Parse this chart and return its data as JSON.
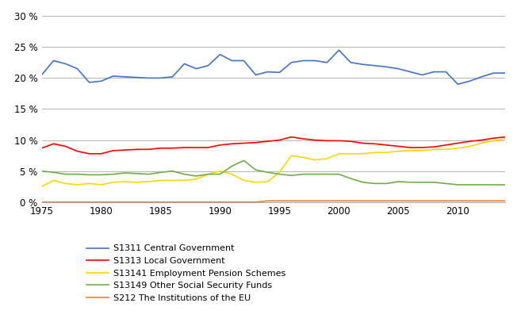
{
  "years": [
    1975,
    1976,
    1977,
    1978,
    1979,
    1980,
    1981,
    1982,
    1983,
    1984,
    1985,
    1986,
    1987,
    1988,
    1989,
    1990,
    1991,
    1992,
    1993,
    1994,
    1995,
    1996,
    1997,
    1998,
    1999,
    2000,
    2001,
    2002,
    2003,
    2004,
    2005,
    2006,
    2007,
    2008,
    2009,
    2010,
    2011,
    2012,
    2013,
    2014
  ],
  "S1311": [
    20.5,
    22.8,
    22.3,
    21.5,
    19.3,
    19.5,
    20.3,
    20.2,
    20.1,
    20.0,
    20.0,
    20.2,
    22.3,
    21.5,
    22.0,
    23.8,
    22.8,
    22.8,
    20.5,
    21.0,
    20.9,
    22.5,
    22.8,
    22.8,
    22.5,
    24.5,
    22.5,
    22.2,
    22.0,
    21.8,
    21.5,
    21.0,
    20.5,
    21.0,
    21.0,
    19.0,
    19.5,
    20.2,
    20.8,
    20.8
  ],
  "S1313": [
    8.7,
    9.4,
    9.0,
    8.2,
    7.8,
    7.8,
    8.3,
    8.4,
    8.5,
    8.5,
    8.7,
    8.7,
    8.8,
    8.8,
    8.8,
    9.2,
    9.4,
    9.5,
    9.6,
    9.8,
    10.0,
    10.5,
    10.2,
    10.0,
    9.9,
    9.9,
    9.8,
    9.5,
    9.4,
    9.2,
    9.0,
    8.8,
    8.8,
    8.9,
    9.2,
    9.5,
    9.8,
    10.0,
    10.3,
    10.5
  ],
  "S13141": [
    2.5,
    3.5,
    3.0,
    2.8,
    3.0,
    2.8,
    3.2,
    3.3,
    3.2,
    3.3,
    3.5,
    3.5,
    3.5,
    3.7,
    4.5,
    5.0,
    4.5,
    3.5,
    3.2,
    3.3,
    4.8,
    7.5,
    7.2,
    6.8,
    7.0,
    7.8,
    7.8,
    7.8,
    8.0,
    8.0,
    8.2,
    8.3,
    8.3,
    8.5,
    8.5,
    8.7,
    9.0,
    9.5,
    9.9,
    10.2
  ],
  "S13149": [
    5.0,
    4.8,
    4.5,
    4.5,
    4.4,
    4.4,
    4.5,
    4.7,
    4.6,
    4.5,
    4.8,
    5.0,
    4.5,
    4.2,
    4.5,
    4.5,
    5.8,
    6.7,
    5.2,
    4.8,
    4.5,
    4.3,
    4.5,
    4.5,
    4.5,
    4.5,
    3.8,
    3.2,
    3.0,
    3.0,
    3.3,
    3.2,
    3.2,
    3.2,
    3.0,
    2.8,
    2.8,
    2.8,
    2.8,
    2.8
  ],
  "S212": [
    0.0,
    0.0,
    0.0,
    0.0,
    0.0,
    0.0,
    0.0,
    0.0,
    0.0,
    0.0,
    0.0,
    0.0,
    0.0,
    0.0,
    0.0,
    0.0,
    0.0,
    0.0,
    0.0,
    0.2,
    0.2,
    0.2,
    0.2,
    0.2,
    0.2,
    0.2,
    0.2,
    0.2,
    0.2,
    0.2,
    0.2,
    0.2,
    0.2,
    0.2,
    0.2,
    0.2,
    0.2,
    0.2,
    0.2,
    0.2
  ],
  "colors": {
    "S1311": "#4472C4",
    "S1313": "#FF0000",
    "S13141": "#FFD700",
    "S13149": "#70AD47",
    "S212": "#ED7D31"
  },
  "legend_labels": {
    "S1311": "S1311 Central Government",
    "S1313": "S1313 Local Government",
    "S13141": "S13141 Employment Pension Schemes",
    "S13149": "S13149 Other Social Security Funds",
    "S212": "S212 The Institutions of the EU"
  },
  "yticks": [
    0,
    5,
    10,
    15,
    20,
    25,
    30
  ],
  "ytick_labels": [
    "0 %",
    "5 %",
    "10 %",
    "15 %",
    "20 %",
    "25 %",
    "30 %"
  ],
  "xticks": [
    1975,
    1980,
    1985,
    1990,
    1995,
    2000,
    2005,
    2010
  ],
  "ylim": [
    0,
    31
  ],
  "xlim": [
    1975,
    2014
  ]
}
